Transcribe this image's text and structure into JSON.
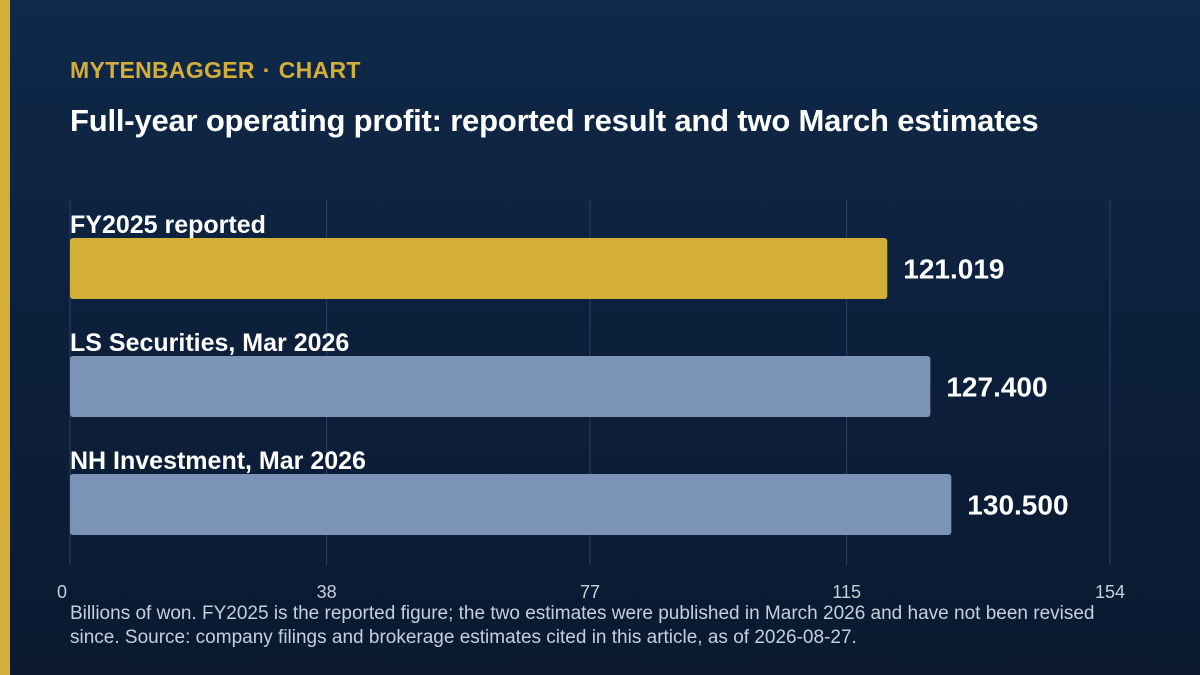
{
  "header": {
    "brand": "MYTENBAGGER",
    "separator": "·",
    "section": "CHART",
    "title": "Full-year operating profit: reported result and two March estimates"
  },
  "colors": {
    "background": "#0c1f3a",
    "accent": "#d3ae38",
    "bar_reported": "#d3ae38",
    "bar_estimate": "#7b93b6",
    "gridline": "#2d4263",
    "tick_text": "#c5d0de"
  },
  "chart_data": {
    "type": "bar",
    "orientation": "horizontal",
    "categories": [
      "FY2025 reported",
      "LS Securities, Mar 2026",
      "NH Investment, Mar 2026"
    ],
    "values": [
      121.019,
      127.4,
      130.5
    ],
    "value_labels": [
      "121.019",
      "127.400",
      "130.500"
    ],
    "highlight_index": 0,
    "xlim": [
      0,
      154
    ],
    "xticks": [
      0,
      38,
      77,
      115,
      154
    ],
    "grid": true,
    "legend": "none",
    "title": "Full-year operating profit: reported result and two March estimates",
    "xlabel": "",
    "ylabel": ""
  },
  "footnote": "Billions of won. FY2025 is the reported figure; the two estimates were published in March 2026 and have not been revised since. Source: company filings and brokerage estimates cited in this article, as of 2026-08-27."
}
